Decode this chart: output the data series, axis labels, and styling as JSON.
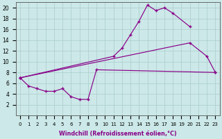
{
  "xlabel": "Windchill (Refroidissement éolien,°C)",
  "background_color": "#cce8e8",
  "line_color": "#880088",
  "grid_color": "#aacccc",
  "x_values": [
    0,
    1,
    2,
    3,
    4,
    5,
    6,
    7,
    8,
    9,
    10,
    11,
    12,
    13,
    14,
    15,
    16,
    17,
    18,
    19,
    20,
    21,
    22,
    23
  ],
  "line_top": [
    7.0,
    null,
    null,
    null,
    null,
    null,
    null,
    null,
    null,
    null,
    null,
    11.0,
    12.5,
    15.0,
    17.5,
    20.5,
    19.5,
    20.0,
    19.0,
    null,
    16.5,
    null,
    null,
    null
  ],
  "line_mid": [
    7.0,
    null,
    null,
    null,
    null,
    null,
    null,
    null,
    null,
    null,
    null,
    null,
    null,
    null,
    null,
    null,
    null,
    null,
    null,
    null,
    13.5,
    null,
    11.0,
    8.0
  ],
  "line_bot": [
    7.0,
    5.5,
    5.0,
    4.5,
    4.5,
    5.0,
    3.5,
    3.0,
    3.0,
    8.5,
    null,
    null,
    null,
    null,
    null,
    null,
    null,
    null,
    null,
    null,
    null,
    null,
    null,
    8.0
  ],
  "line_diag": [
    7.0,
    null,
    null,
    null,
    null,
    null,
    null,
    null,
    null,
    null,
    null,
    null,
    null,
    null,
    null,
    null,
    null,
    null,
    null,
    null,
    13.5,
    null,
    null,
    8.0
  ],
  "ylim": [
    0,
    21
  ],
  "xlim": [
    -0.5,
    23.5
  ],
  "yticks": [
    2,
    4,
    6,
    8,
    10,
    12,
    14,
    16,
    18,
    20
  ],
  "xticks": [
    0,
    1,
    2,
    3,
    4,
    5,
    6,
    7,
    8,
    9,
    10,
    11,
    12,
    13,
    14,
    15,
    16,
    17,
    18,
    19,
    20,
    21,
    22,
    23
  ]
}
